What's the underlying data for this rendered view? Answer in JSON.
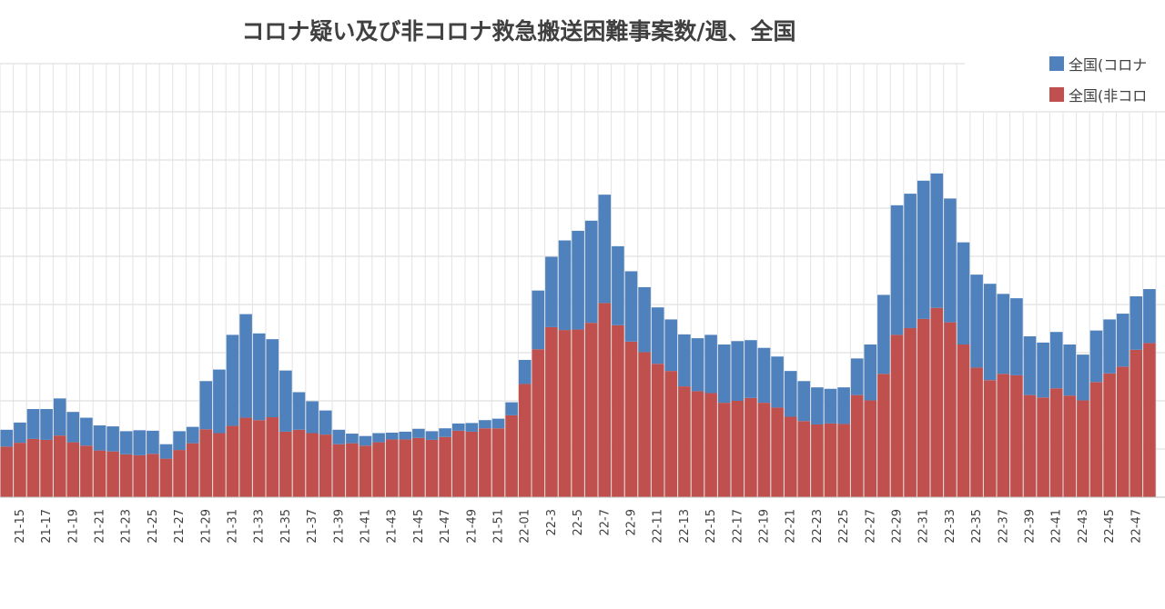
{
  "chart_data": {
    "type": "bar",
    "stacked": true,
    "title": "コロナ疑い及び非コロナ救急搬送困難事案数/週、全国",
    "xlabel": "",
    "ylabel": "",
    "ylim": [
      0,
      9000
    ],
    "grid": true,
    "legend_position": "top-right",
    "categories": [
      "21-14",
      "21-15",
      "21-16",
      "21-17",
      "21-18",
      "21-19",
      "21-20",
      "21-21",
      "21-22",
      "21-23",
      "21-24",
      "21-25",
      "21-26",
      "21-27",
      "21-28",
      "21-29",
      "21-30",
      "21-31",
      "21-32",
      "21-33",
      "21-34",
      "21-35",
      "21-36",
      "21-37",
      "21-38",
      "21-39",
      "21-40",
      "21-41",
      "21-42",
      "21-43",
      "21-44",
      "21-45",
      "21-46",
      "21-47",
      "21-48",
      "21-49",
      "21-50",
      "21-51",
      "21-52",
      "22-01",
      "22-02",
      "22-3",
      "22-4",
      "22-5",
      "22-6",
      "22-7",
      "22-8",
      "22-9",
      "22-10",
      "22-11",
      "22-12",
      "22-13",
      "22-14",
      "22-15",
      "22-16",
      "22-17",
      "22-18",
      "22-19",
      "22-20",
      "22-21",
      "22-22",
      "22-23",
      "22-24",
      "22-25",
      "22-26",
      "22-27",
      "22-28",
      "22-29",
      "22-30",
      "22-31",
      "22-32",
      "22-33",
      "22-34",
      "22-35",
      "22-36",
      "22-37",
      "22-38",
      "22-39",
      "22-40",
      "22-41",
      "22-42",
      "22-43",
      "22-44",
      "22-45",
      "22-46",
      "22-47",
      "22-48"
    ],
    "series": [
      {
        "name": "全国(非コロ",
        "color": "#c0504d",
        "values": [
          1050,
          1130,
          1210,
          1190,
          1280,
          1140,
          1070,
          970,
          950,
          890,
          870,
          900,
          800,
          980,
          1120,
          1410,
          1330,
          1480,
          1650,
          1600,
          1660,
          1360,
          1400,
          1330,
          1300,
          1100,
          1120,
          1070,
          1140,
          1200,
          1200,
          1230,
          1190,
          1250,
          1380,
          1360,
          1430,
          1430,
          1700,
          2350,
          3070,
          3530,
          3470,
          3480,
          3620,
          4030,
          3570,
          3230,
          3010,
          2770,
          2620,
          2300,
          2200,
          2160,
          1960,
          2000,
          2060,
          1960,
          1860,
          1670,
          1580,
          1510,
          1530,
          1520,
          2120,
          2010,
          2560,
          3370,
          3510,
          3700,
          3930,
          3630,
          3170,
          2690,
          2430,
          2560,
          2530,
          2120,
          2070,
          2260,
          2110,
          2010,
          2390,
          2570,
          2710,
          3060,
          3200
        ]
      },
      {
        "name": "全国(コロナ",
        "color": "#4f81bd",
        "values": [
          350,
          420,
          620,
          640,
          770,
          630,
          580,
          520,
          520,
          480,
          520,
          480,
          300,
          390,
          340,
          1000,
          1320,
          1890,
          2150,
          1800,
          1620,
          1270,
          780,
          660,
          500,
          300,
          200,
          200,
          190,
          140,
          160,
          190,
          180,
          180,
          150,
          180,
          170,
          200,
          270,
          500,
          1220,
          1460,
          1860,
          2050,
          2120,
          2250,
          1640,
          1460,
          1350,
          1170,
          1070,
          1080,
          1100,
          1210,
          1210,
          1240,
          1200,
          1140,
          1060,
          950,
          830,
          770,
          720,
          760,
          760,
          1160,
          1640,
          2690,
          2790,
          2870,
          2790,
          2570,
          2120,
          1930,
          2000,
          1660,
          1600,
          1220,
          1140,
          1170,
          1060,
          950,
          1070,
          1120,
          1100,
          1110,
          1120
        ]
      }
    ]
  }
}
